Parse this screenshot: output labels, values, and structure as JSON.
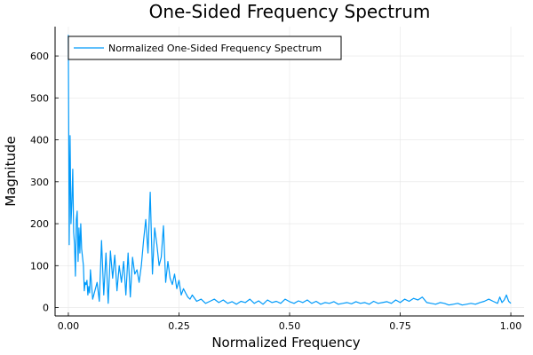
{
  "chart_data": {
    "type": "line",
    "title": "One-Sided Frequency Spectrum",
    "xlabel": "Normalized Frequency",
    "ylabel": "Magnitude",
    "xlim": [
      -0.03,
      1.03
    ],
    "ylim": [
      -20,
      670
    ],
    "xticks": [
      0.0,
      0.25,
      0.5,
      0.75,
      1.0
    ],
    "xtick_labels": [
      "0.00",
      "0.25",
      "0.50",
      "0.75",
      "1.00"
    ],
    "yticks": [
      0,
      100,
      200,
      300,
      400,
      500,
      600
    ],
    "ytick_labels": [
      "0",
      "100",
      "200",
      "300",
      "400",
      "500",
      "600"
    ],
    "grid": true,
    "legend_position": "top-left",
    "series_color": "#009AFA",
    "series": [
      {
        "name": "Normalized One-Sided Frequency Spectrum",
        "x": [
          0.0,
          0.002,
          0.004,
          0.006,
          0.008,
          0.01,
          0.012,
          0.014,
          0.016,
          0.018,
          0.02,
          0.022,
          0.024,
          0.026,
          0.028,
          0.03,
          0.032,
          0.034,
          0.036,
          0.038,
          0.04,
          0.042,
          0.044,
          0.046,
          0.048,
          0.05,
          0.055,
          0.06,
          0.065,
          0.07,
          0.075,
          0.08,
          0.085,
          0.09,
          0.095,
          0.1,
          0.105,
          0.11,
          0.115,
          0.12,
          0.125,
          0.13,
          0.135,
          0.14,
          0.145,
          0.15,
          0.155,
          0.16,
          0.165,
          0.17,
          0.175,
          0.18,
          0.185,
          0.19,
          0.195,
          0.2,
          0.205,
          0.21,
          0.215,
          0.22,
          0.225,
          0.23,
          0.235,
          0.24,
          0.245,
          0.25,
          0.255,
          0.26,
          0.265,
          0.27,
          0.275,
          0.28,
          0.29,
          0.3,
          0.31,
          0.32,
          0.33,
          0.34,
          0.35,
          0.36,
          0.37,
          0.38,
          0.39,
          0.4,
          0.41,
          0.42,
          0.43,
          0.44,
          0.45,
          0.46,
          0.47,
          0.48,
          0.49,
          0.5,
          0.51,
          0.52,
          0.53,
          0.54,
          0.55,
          0.56,
          0.57,
          0.58,
          0.59,
          0.6,
          0.61,
          0.62,
          0.63,
          0.64,
          0.65,
          0.66,
          0.67,
          0.68,
          0.69,
          0.7,
          0.71,
          0.72,
          0.73,
          0.74,
          0.75,
          0.76,
          0.77,
          0.78,
          0.79,
          0.8,
          0.81,
          0.82,
          0.83,
          0.84,
          0.85,
          0.86,
          0.87,
          0.88,
          0.89,
          0.9,
          0.91,
          0.92,
          0.93,
          0.94,
          0.95,
          0.96,
          0.97,
          0.975,
          0.98,
          0.985,
          0.99,
          0.995,
          1.0
        ],
        "y": [
          650,
          150,
          410,
          200,
          250,
          330,
          180,
          150,
          75,
          210,
          230,
          110,
          190,
          130,
          200,
          140,
          120,
          100,
          40,
          60,
          55,
          65,
          30,
          50,
          35,
          90,
          20,
          40,
          60,
          15,
          160,
          30,
          130,
          10,
          135,
          70,
          125,
          40,
          100,
          60,
          110,
          30,
          130,
          25,
          120,
          80,
          90,
          60,
          100,
          160,
          210,
          130,
          275,
          80,
          190,
          150,
          100,
          120,
          195,
          60,
          110,
          70,
          55,
          80,
          45,
          65,
          30,
          45,
          35,
          25,
          20,
          30,
          15,
          20,
          10,
          15,
          20,
          12,
          18,
          10,
          14,
          8,
          15,
          12,
          20,
          10,
          16,
          8,
          18,
          12,
          15,
          10,
          20,
          14,
          10,
          16,
          12,
          18,
          10,
          15,
          8,
          12,
          10,
          14,
          8,
          10,
          12,
          9,
          14,
          10,
          12,
          8,
          15,
          10,
          12,
          14,
          10,
          18,
          12,
          20,
          15,
          22,
          18,
          25,
          12,
          10,
          8,
          12,
          10,
          6,
          8,
          10,
          6,
          8,
          10,
          8,
          12,
          15,
          20,
          15,
          10,
          25,
          12,
          18,
          30,
          15,
          10
        ]
      }
    ]
  }
}
